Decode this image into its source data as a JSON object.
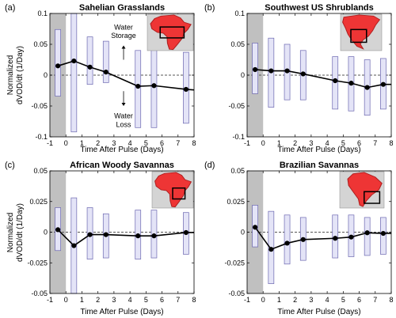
{
  "chart_data": [
    {
      "type": "line",
      "panel_label": "(a)",
      "title": "Sahelian Grasslands",
      "xlabel": "Time After Pulse (Days)",
      "ylabel_lines": [
        "Normalized",
        "dVOD/dt (1/Day)"
      ],
      "xlim": [
        -1,
        8
      ],
      "ylim": [
        -0.1,
        0.1
      ],
      "xticks": [
        -1,
        0,
        1,
        2,
        3,
        4,
        5,
        6,
        7,
        8
      ],
      "xtick_labels": [
        "-1",
        "0",
        "1",
        "2",
        "3",
        "4",
        "5",
        "6",
        "7",
        "8"
      ],
      "yticks": [
        -0.1,
        -0.05,
        0,
        0.05,
        0.1
      ],
      "ytick_labels": [
        "-0.1",
        "-0.05",
        "0",
        "0.05",
        "0.1"
      ],
      "pre_pulse_shade": [
        -1,
        0
      ],
      "zero_line": 0,
      "x": [
        -0.5,
        0.5,
        1.5,
        2.5,
        4.5,
        5.5,
        7.5,
        8
      ],
      "y": [
        0.015,
        0.023,
        0.013,
        0.005,
        -0.018,
        -0.017,
        -0.023,
        -0.024
      ],
      "point_x": [
        -0.5,
        0.5,
        1.5,
        2.5,
        4.5,
        5.5,
        7.5
      ],
      "point_y": [
        0.015,
        0.023,
        0.013,
        0.005,
        -0.018,
        -0.017,
        -0.023
      ],
      "ranges": [
        {
          "x": -0.5,
          "low": -0.034,
          "high": 0.074
        },
        {
          "x": 0.5,
          "low": -0.092,
          "high": 0.1
        },
        {
          "x": 1.5,
          "low": -0.015,
          "high": 0.062
        },
        {
          "x": 2.5,
          "low": -0.012,
          "high": 0.055
        },
        {
          "x": 4.5,
          "low": -0.085,
          "high": 0.04
        },
        {
          "x": 5.5,
          "low": -0.085,
          "high": 0.05
        },
        {
          "x": 7.5,
          "low": -0.078,
          "high": 0.037
        }
      ],
      "annotations": {
        "up_text_lines": [
          "Water",
          "Storage"
        ],
        "down_text_lines": [
          "Water",
          "Loss"
        ],
        "up_arrow_y": [
          0.025,
          0.048
        ],
        "down_arrow_y": [
          -0.026,
          -0.05
        ],
        "annot_x": 3.6,
        "up_text_y": [
          0.074,
          0.06
        ],
        "down_text_y": [
          -0.07,
          -0.084
        ]
      },
      "map": "africa",
      "map_box": [
        0.28,
        0.35,
        0.52,
        0.3
      ]
    },
    {
      "type": "line",
      "panel_label": "(b)",
      "title": "Southwest US Shrublands",
      "xlabel": "Time After Pulse (Days)",
      "ylabel_lines": [],
      "xlim": [
        -1,
        8
      ],
      "ylim": [
        -0.1,
        0.1
      ],
      "xticks": [
        -1,
        0,
        1,
        2,
        3,
        4,
        5,
        6,
        7,
        8
      ],
      "xtick_labels": [
        "-1",
        "0",
        "1",
        "2",
        "3",
        "4",
        "5",
        "6",
        "7",
        "8"
      ],
      "yticks": [
        -0.1,
        -0.05,
        0,
        0.05,
        0.1
      ],
      "ytick_labels": [
        "-0.1",
        "-0.05",
        "0",
        "0.05",
        "0.1"
      ],
      "pre_pulse_shade": [
        -1,
        0
      ],
      "zero_line": 0,
      "x": [
        -0.5,
        0.5,
        1.5,
        2.5,
        4.5,
        5.5,
        6.5,
        7.5,
        8
      ],
      "y": [
        0.009,
        0.007,
        0.007,
        0.002,
        -0.009,
        -0.013,
        -0.02,
        -0.015,
        -0.015
      ],
      "point_x": [
        -0.5,
        0.5,
        1.5,
        2.5,
        4.5,
        5.5,
        6.5,
        7.5
      ],
      "point_y": [
        0.009,
        0.007,
        0.007,
        0.002,
        -0.009,
        -0.013,
        -0.02,
        -0.015
      ],
      "ranges": [
        {
          "x": -0.5,
          "low": -0.03,
          "high": 0.052
        },
        {
          "x": 0.5,
          "low": -0.052,
          "high": 0.06
        },
        {
          "x": 1.5,
          "low": -0.04,
          "high": 0.05
        },
        {
          "x": 2.5,
          "low": -0.04,
          "high": 0.04
        },
        {
          "x": 4.5,
          "low": -0.055,
          "high": 0.03
        },
        {
          "x": 5.5,
          "low": -0.058,
          "high": 0.03
        },
        {
          "x": 6.5,
          "low": -0.065,
          "high": 0.025
        },
        {
          "x": 7.5,
          "low": -0.055,
          "high": 0.027
        }
      ],
      "map": "namerica",
      "map_box": [
        0.25,
        0.42,
        0.38,
        0.35
      ]
    },
    {
      "type": "line",
      "panel_label": "(c)",
      "title": "African Woody Savannas",
      "xlabel": "Time After Pulse (Days)",
      "ylabel_lines": [
        "Normalized",
        "dVOD/dt (1/Day)"
      ],
      "xlim": [
        -1,
        8
      ],
      "ylim": [
        -0.05,
        0.05
      ],
      "xticks": [
        -1,
        0,
        1,
        2,
        3,
        4,
        5,
        6,
        7,
        8
      ],
      "xtick_labels": [
        "-1",
        "0",
        "1",
        "2",
        "3",
        "4",
        "5",
        "6",
        "7",
        "8"
      ],
      "yticks": [
        -0.05,
        -0.025,
        0,
        0.025,
        0.05
      ],
      "ytick_labels": [
        "-0.05",
        "-0.025",
        "0",
        "0.025",
        "0.05"
      ],
      "pre_pulse_shade": [
        -1,
        0
      ],
      "zero_line": 0,
      "x": [
        -0.5,
        0.5,
        1.5,
        2.5,
        4.5,
        5.5,
        7.5,
        8
      ],
      "y": [
        0.002,
        -0.011,
        -0.002,
        -0.002,
        -0.003,
        -0.003,
        -0.0003,
        -0.0003
      ],
      "point_x": [
        -0.5,
        0.5,
        1.5,
        2.5,
        4.5,
        5.5,
        7.5
      ],
      "point_y": [
        0.002,
        -0.011,
        -0.002,
        -0.002,
        -0.003,
        -0.003,
        -0.0003
      ],
      "ranges": [
        {
          "x": -0.5,
          "low": -0.015,
          "high": 0.02
        },
        {
          "x": 0.5,
          "low": -0.05,
          "high": 0.028
        },
        {
          "x": 1.5,
          "low": -0.022,
          "high": 0.02
        },
        {
          "x": 2.5,
          "low": -0.021,
          "high": 0.015
        },
        {
          "x": 4.5,
          "low": -0.022,
          "high": 0.018
        },
        {
          "x": 5.5,
          "low": -0.021,
          "high": 0.018
        },
        {
          "x": 7.5,
          "low": -0.018,
          "high": 0.016
        }
      ],
      "map": "africa",
      "map_box": [
        0.5,
        0.45,
        0.3,
        0.3
      ]
    },
    {
      "type": "line",
      "panel_label": "(d)",
      "title": "Brazilian Savannas",
      "xlabel": "Time After Pulse (Days)",
      "ylabel_lines": [],
      "xlim": [
        -1,
        8
      ],
      "ylim": [
        -0.05,
        0.05
      ],
      "xticks": [
        -1,
        0,
        1,
        2,
        3,
        4,
        5,
        6,
        7,
        8
      ],
      "xtick_labels": [
        "-1",
        "0",
        "1",
        "2",
        "3",
        "4",
        "5",
        "6",
        "7",
        "8"
      ],
      "yticks": [
        -0.05,
        -0.025,
        0,
        0.025,
        0.05
      ],
      "ytick_labels": [
        "-0.05",
        "-0.025",
        "0",
        "0.025",
        "0.05"
      ],
      "pre_pulse_shade": [
        -1,
        0
      ],
      "zero_line": 0,
      "x": [
        -0.5,
        0.5,
        1.5,
        2.5,
        4.5,
        5.5,
        6.5,
        7.5,
        8
      ],
      "y": [
        0.004,
        -0.014,
        -0.009,
        -0.006,
        -0.005,
        -0.004,
        -0.0005,
        -0.001,
        -0.001
      ],
      "point_x": [
        -0.5,
        0.5,
        1.5,
        2.5,
        4.5,
        5.5,
        6.5,
        7.5
      ],
      "point_y": [
        0.004,
        -0.014,
        -0.009,
        -0.006,
        -0.005,
        -0.004,
        -0.0005,
        -0.001
      ],
      "ranges": [
        {
          "x": -0.5,
          "low": -0.012,
          "high": 0.022
        },
        {
          "x": 0.5,
          "low": -0.042,
          "high": 0.017
        },
        {
          "x": 1.5,
          "low": -0.026,
          "high": 0.014
        },
        {
          "x": 2.5,
          "low": -0.023,
          "high": 0.012
        },
        {
          "x": 4.5,
          "low": -0.021,
          "high": 0.014
        },
        {
          "x": 5.5,
          "low": -0.02,
          "high": 0.014
        },
        {
          "x": 6.5,
          "low": -0.019,
          "high": 0.012
        },
        {
          "x": 7.5,
          "low": -0.018,
          "high": 0.012
        }
      ],
      "map": "samerica",
      "map_box": [
        0.55,
        0.55,
        0.35,
        0.32
      ]
    }
  ],
  "colors": {
    "line": "#000000",
    "range_fill": "#e4e4f7",
    "range_stroke": "#6b67b0",
    "shade": "#c0c0c0",
    "zero_line": "#555555",
    "map_land": "#ee3535",
    "map_sea": "#d4d4d4"
  }
}
